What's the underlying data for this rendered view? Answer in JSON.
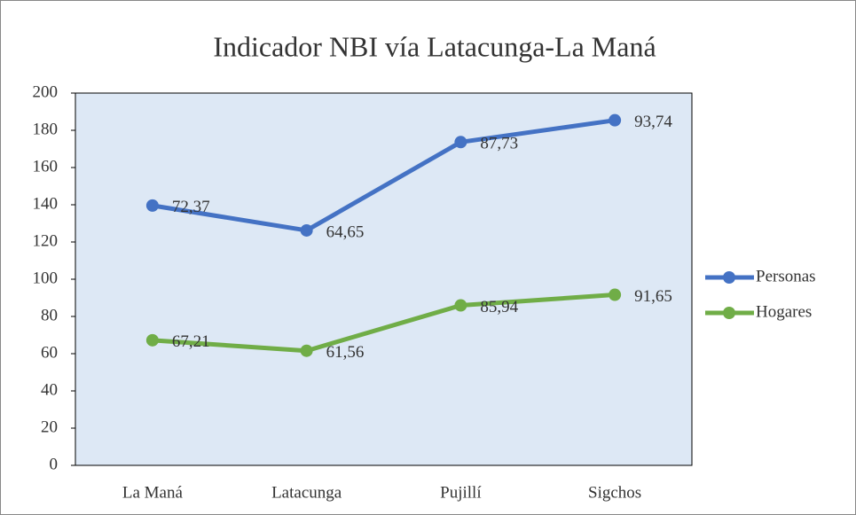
{
  "chart_data": {
    "type": "line",
    "stacked": true,
    "title": "Indicador NBI vía Latacunga-La Maná",
    "categories": [
      "La Maná",
      "Latacunga",
      "Pujillí",
      "Sigchos"
    ],
    "series": [
      {
        "name": "Hogares",
        "color": "#70ad47",
        "values": [
          67.21,
          61.56,
          85.94,
          91.65
        ],
        "value_labels": [
          "67,21",
          "61,56",
          "85,94",
          "91,65"
        ]
      },
      {
        "name": "Personas",
        "color": "#4472c4",
        "values": [
          72.37,
          64.65,
          87.73,
          93.74
        ],
        "value_labels": [
          "72,37",
          "64,65",
          "87,73",
          "93,74"
        ]
      }
    ],
    "ylim": [
      0,
      200
    ],
    "yticks": [
      0,
      20,
      40,
      60,
      80,
      100,
      120,
      140,
      160,
      180,
      200
    ],
    "plot_background": "#dde8f5",
    "legend": "right"
  }
}
